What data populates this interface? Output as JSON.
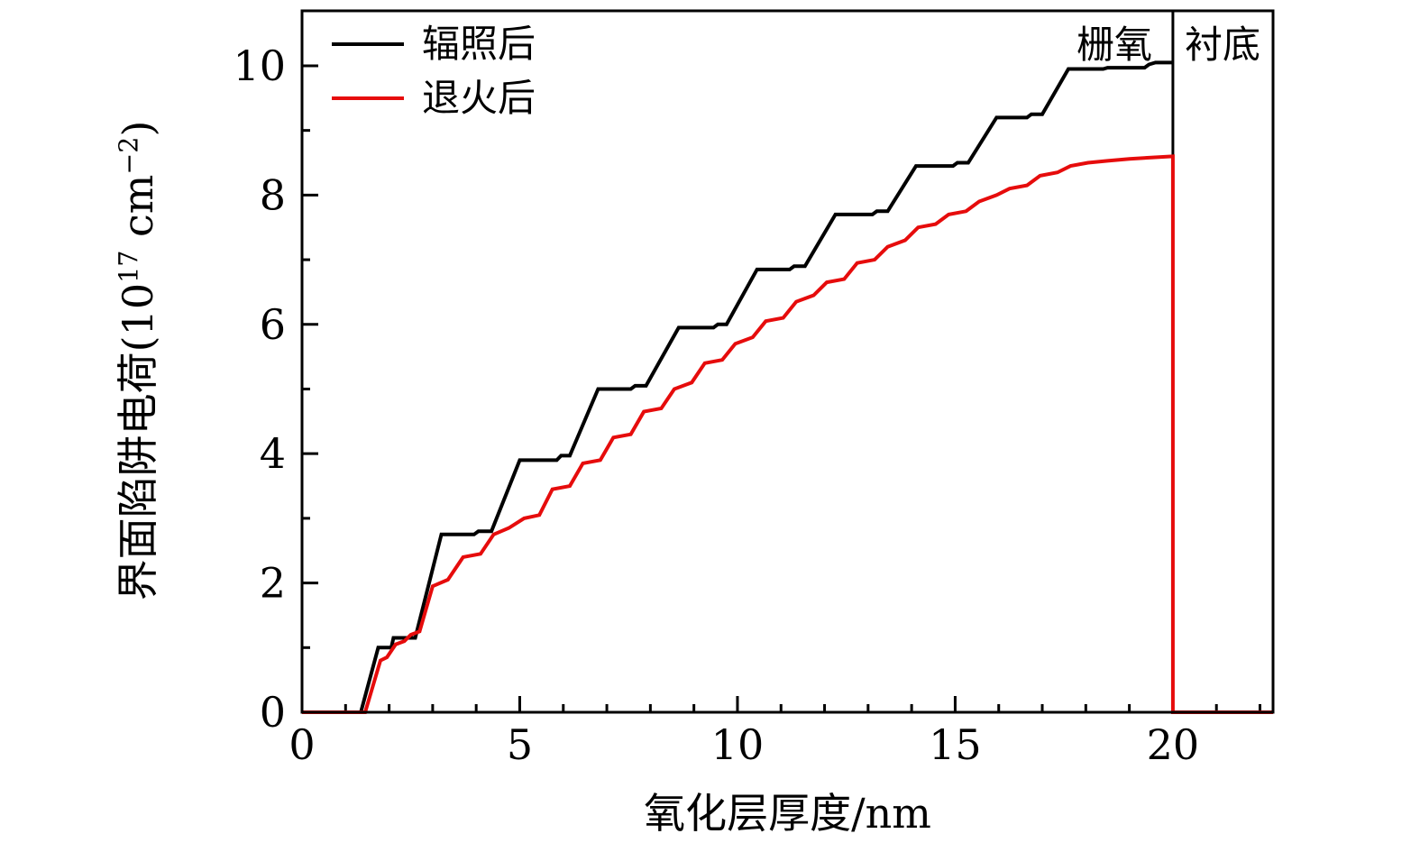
{
  "chart_data": {
    "type": "line",
    "title": "",
    "xlabel": "氧化层厚度/nm",
    "ylabel_parts": [
      "界面陷阱电荷(10",
      "17",
      " cm",
      "−2",
      ")"
    ],
    "xlim": [
      0,
      22.3
    ],
    "ylim": [
      0,
      10.85
    ],
    "x_major_ticks": [
      0,
      5,
      10,
      15,
      20
    ],
    "x_minor_step": 1,
    "y_major_ticks": [
      0,
      2,
      4,
      6,
      8,
      10
    ],
    "y_minor_step": 1,
    "grid": "off",
    "legend_position": "top-left-inside",
    "region_divider_x": 20,
    "region_labels": [
      {
        "text": "栅氧",
        "side": "left"
      },
      {
        "text": "衬底",
        "side": "right"
      }
    ],
    "legend": [
      {
        "label": "辐照后",
        "color": "#000000"
      },
      {
        "label": "退火后",
        "color": "#e60c0c"
      }
    ],
    "series": [
      {
        "name": "辐照后",
        "color": "#000000",
        "points": [
          [
            0,
            0
          ],
          [
            1.35,
            0
          ],
          [
            1.75,
            1.0
          ],
          [
            2.05,
            1.0
          ],
          [
            2.1,
            1.15
          ],
          [
            2.6,
            1.15
          ],
          [
            3.2,
            2.75
          ],
          [
            3.95,
            2.75
          ],
          [
            4.05,
            2.8
          ],
          [
            4.35,
            2.8
          ],
          [
            5.0,
            3.9
          ],
          [
            5.85,
            3.9
          ],
          [
            5.95,
            3.97
          ],
          [
            6.15,
            3.97
          ],
          [
            6.8,
            5.0
          ],
          [
            7.55,
            5.0
          ],
          [
            7.65,
            5.05
          ],
          [
            7.9,
            5.05
          ],
          [
            8.65,
            5.95
          ],
          [
            9.45,
            5.95
          ],
          [
            9.55,
            6.0
          ],
          [
            9.75,
            6.0
          ],
          [
            10.45,
            6.85
          ],
          [
            11.2,
            6.85
          ],
          [
            11.3,
            6.9
          ],
          [
            11.55,
            6.9
          ],
          [
            12.25,
            7.7
          ],
          [
            13.1,
            7.7
          ],
          [
            13.2,
            7.75
          ],
          [
            13.45,
            7.75
          ],
          [
            14.1,
            8.45
          ],
          [
            14.95,
            8.45
          ],
          [
            15.05,
            8.5
          ],
          [
            15.3,
            8.5
          ],
          [
            15.95,
            9.2
          ],
          [
            16.65,
            9.2
          ],
          [
            16.75,
            9.25
          ],
          [
            17.0,
            9.25
          ],
          [
            17.6,
            9.95
          ],
          [
            18.4,
            9.95
          ],
          [
            18.5,
            9.97
          ],
          [
            19.35,
            9.97
          ],
          [
            19.45,
            10.02
          ],
          [
            19.6,
            10.05
          ],
          [
            20,
            10.05
          ]
        ]
      },
      {
        "name": "退火后",
        "color": "#e60c0c",
        "points": [
          [
            0,
            0
          ],
          [
            1.45,
            0
          ],
          [
            1.8,
            0.8
          ],
          [
            1.95,
            0.85
          ],
          [
            2.15,
            1.05
          ],
          [
            2.35,
            1.1
          ],
          [
            2.5,
            1.2
          ],
          [
            2.7,
            1.25
          ],
          [
            3.0,
            1.95
          ],
          [
            3.35,
            2.05
          ],
          [
            3.7,
            2.4
          ],
          [
            4.1,
            2.45
          ],
          [
            4.4,
            2.75
          ],
          [
            4.75,
            2.85
          ],
          [
            5.1,
            3.0
          ],
          [
            5.45,
            3.05
          ],
          [
            5.75,
            3.45
          ],
          [
            6.15,
            3.5
          ],
          [
            6.45,
            3.85
          ],
          [
            6.85,
            3.9
          ],
          [
            7.15,
            4.25
          ],
          [
            7.55,
            4.3
          ],
          [
            7.85,
            4.65
          ],
          [
            8.25,
            4.7
          ],
          [
            8.55,
            5.0
          ],
          [
            8.95,
            5.1
          ],
          [
            9.25,
            5.4
          ],
          [
            9.65,
            5.45
          ],
          [
            9.95,
            5.7
          ],
          [
            10.35,
            5.8
          ],
          [
            10.65,
            6.05
          ],
          [
            11.05,
            6.1
          ],
          [
            11.35,
            6.35
          ],
          [
            11.75,
            6.45
          ],
          [
            12.05,
            6.65
          ],
          [
            12.45,
            6.7
          ],
          [
            12.75,
            6.95
          ],
          [
            13.15,
            7.0
          ],
          [
            13.45,
            7.2
          ],
          [
            13.85,
            7.3
          ],
          [
            14.15,
            7.5
          ],
          [
            14.55,
            7.55
          ],
          [
            14.85,
            7.7
          ],
          [
            15.25,
            7.75
          ],
          [
            15.55,
            7.9
          ],
          [
            15.95,
            8.0
          ],
          [
            16.25,
            8.1
          ],
          [
            16.65,
            8.15
          ],
          [
            16.95,
            8.3
          ],
          [
            17.35,
            8.35
          ],
          [
            17.65,
            8.45
          ],
          [
            18.05,
            8.5
          ],
          [
            18.5,
            8.53
          ],
          [
            19.0,
            8.56
          ],
          [
            19.5,
            8.58
          ],
          [
            20,
            8.6
          ],
          [
            20,
            0
          ],
          [
            22.3,
            0
          ]
        ]
      }
    ]
  }
}
